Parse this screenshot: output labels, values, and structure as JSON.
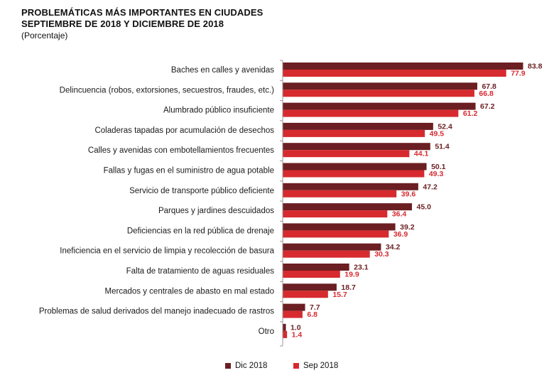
{
  "header": {
    "title_line1": "PROBLEMÁTICAS MÁS IMPORTANTES EN CIUDADES",
    "title_line2": "SEPTIEMBRE DE 2018 Y DICIEMBRE DE 2018",
    "subtitle": "(Porcentaje)"
  },
  "colors": {
    "dic": "#6b1f22",
    "sep": "#d62a2f",
    "axis": "#9a9a9a"
  },
  "chart_data": {
    "type": "bar",
    "orientation": "horizontal",
    "title": "PROBLEMÁTICAS MÁS IMPORTANTES EN CIUDADES SEPTIEMBRE DE 2018 Y DICIEMBRE DE 2018",
    "subtitle": "(Porcentaje)",
    "xlabel": "",
    "ylabel": "",
    "xlim": [
      0,
      85
    ],
    "grid": false,
    "legend_position": "bottom",
    "categories": [
      "Baches en calles y avenidas",
      "Delincuencia (robos, extorsiones, secuestros, fraudes, etc.)",
      "Alumbrado público insuficiente",
      "Coladeras tapadas por acumulación de desechos",
      "Calles y avenidas con embotellamientos frecuentes",
      "Fallas y fugas en el suministro de agua potable",
      "Servicio de transporte público deficiente",
      "Parques y jardines descuidados",
      "Deficiencias en la red pública de drenaje",
      "Ineficiencia en el servicio de limpia y recolección de basura",
      "Falta de tratamiento de aguas residuales",
      "Mercados y centrales de abasto en mal estado",
      "Problemas de salud derivados del manejo inadecuado de rastros",
      "Otro"
    ],
    "series": [
      {
        "name": "Dic 2018",
        "color": "#6b1f22",
        "values": [
          83.8,
          67.8,
          67.2,
          52.4,
          51.4,
          50.1,
          47.2,
          45.0,
          39.2,
          34.2,
          23.1,
          18.7,
          7.7,
          1.0
        ],
        "labels": [
          "83.8",
          "67.8",
          "67.2",
          "52.4",
          "51.4",
          "50.1",
          "47.2",
          "45.0",
          "39.2",
          "34.2",
          "23.1",
          "18.7",
          "7.7",
          "1.0"
        ]
      },
      {
        "name": "Sep 2018",
        "color": "#d62a2f",
        "values": [
          77.9,
          66.8,
          61.2,
          49.5,
          44.1,
          49.3,
          39.6,
          36.4,
          36.9,
          30.3,
          19.9,
          15.7,
          6.8,
          1.4
        ],
        "labels": [
          "77.9",
          "66.8",
          "61.2",
          "49.5",
          "44.1",
          "49.3",
          "39.6",
          "36.4",
          "36.9",
          "30.3",
          "19.9",
          "15.7",
          "6.8",
          "1.4"
        ]
      }
    ]
  }
}
